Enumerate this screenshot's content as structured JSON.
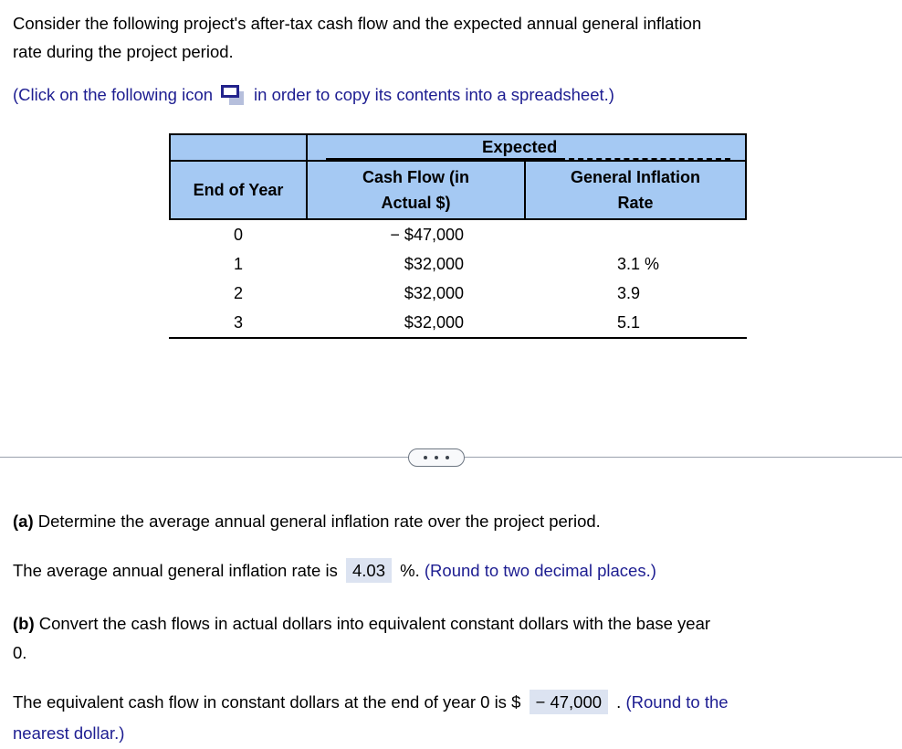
{
  "colors": {
    "table_header_blue": "#a5c9f3",
    "link_navy": "#1d1d91",
    "answer_highlight": "#dce3f1",
    "divider_gray": "#9aa1ad"
  },
  "intro": {
    "line1": "Consider the following project's after-tax cash flow and the expected annual general inflation",
    "line2": "rate during the project period."
  },
  "click_note": {
    "before": "(Click on the following icon",
    "after": "in order to copy its contents into a spreadsheet.)",
    "icon": "copy-to-spreadsheet-icon"
  },
  "table": {
    "expected": "Expected",
    "headers": {
      "end_of_year": "End of Year",
      "cash_flow_line1": "Cash Flow (in",
      "cash_flow_line2": "Actual $)",
      "inflation_line1": "General Inflation",
      "inflation_line2": "Rate"
    },
    "rows": [
      {
        "year": "0",
        "cash_flow": "− $47,000",
        "inflation": ""
      },
      {
        "year": "1",
        "cash_flow": "$32,000",
        "inflation": "3.1 %"
      },
      {
        "year": "2",
        "cash_flow": "$32,000",
        "inflation": "3.9"
      },
      {
        "year": "3",
        "cash_flow": "$32,000",
        "inflation": "5.1"
      }
    ]
  },
  "divider": {
    "toggle_icon": "ellipsis-icon"
  },
  "part_a": {
    "label": "(a)",
    "question": "Determine the average annual general inflation rate over the project period.",
    "answer_prefix": "The average annual general inflation rate is",
    "answer_value": "4.03",
    "answer_suffix": "%.",
    "round_note": "(Round to two decimal places.)"
  },
  "part_b": {
    "label": "(b)",
    "question_line1": "Convert the cash flows in actual dollars into equivalent constant dollars with the base year",
    "question_line2": "0.",
    "answer_prefix": "The equivalent cash flow in constant dollars at the end of year 0 is $",
    "answer_value": "− 47,000",
    "answer_suffix": ".",
    "round_note_line1": "(Round to the",
    "round_note_line2": "nearest dollar.)"
  }
}
